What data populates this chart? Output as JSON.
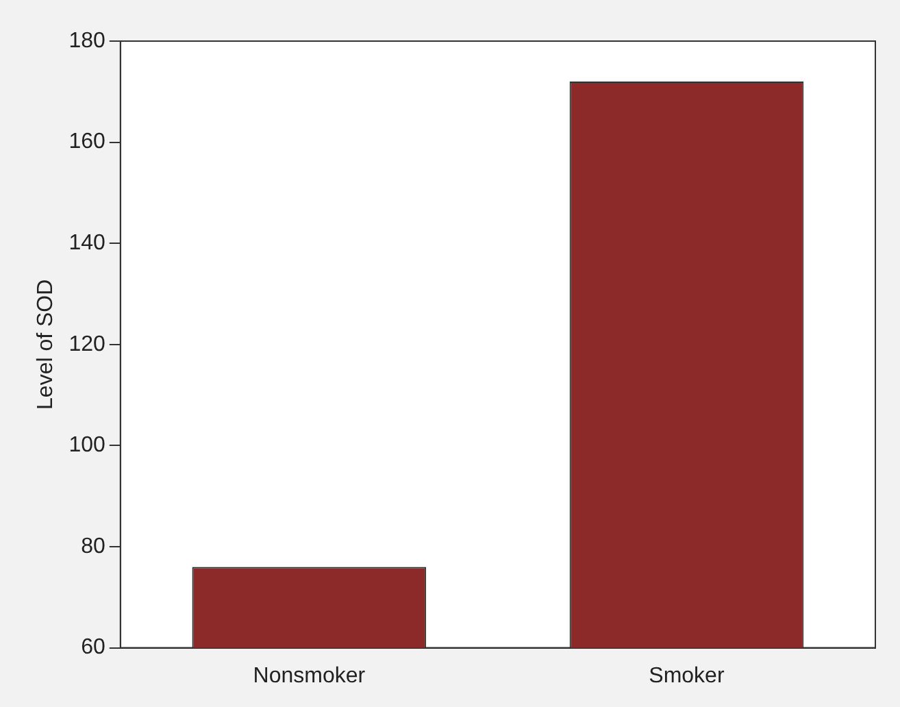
{
  "chart_data": {
    "type": "bar",
    "ylabel": "Level of SOD",
    "categories": [
      "Nonsmoker",
      "Smoker"
    ],
    "values": [
      76,
      172
    ],
    "color": "#8c2a2a",
    "ylim": [
      60,
      180
    ],
    "yticks": [
      60,
      80,
      100,
      120,
      140,
      160,
      180
    ],
    "grid": false,
    "legend": false
  }
}
